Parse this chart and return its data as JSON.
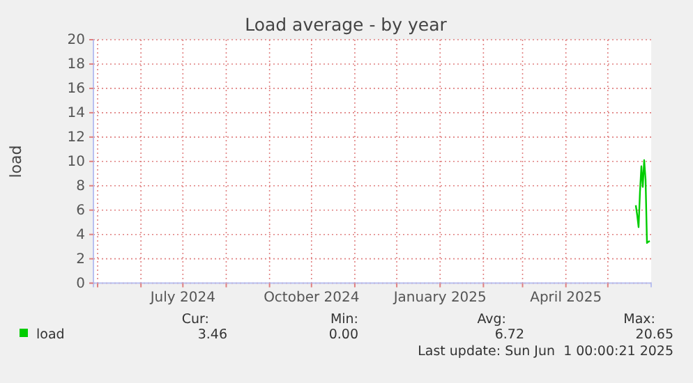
{
  "chart_data": {
    "type": "line",
    "title": "Load average - by year",
    "ylabel": "load",
    "x": [
      "2025-05-21",
      "2025-05-22",
      "2025-05-23",
      "2025-05-24",
      "2025-05-25",
      "2025-05-26",
      "2025-05-27",
      "2025-05-28",
      "2025-05-29",
      "2025-05-30",
      "2025-05-31"
    ],
    "series": [
      {
        "name": "load",
        "color": "#00cc00",
        "values": [
          6.4,
          5.6,
          4.6,
          7.5,
          9.6,
          7.9,
          10.1,
          8.5,
          3.3,
          3.4,
          3.46
        ]
      }
    ],
    "xlim": [
      "2024-04-28",
      "2025-06-01"
    ],
    "xticks": [
      {
        "value": "2024-05-01",
        "label": null
      },
      {
        "value": "2024-06-01",
        "label": null
      },
      {
        "value": "2024-07-01",
        "label": "July 2024"
      },
      {
        "value": "2024-08-01",
        "label": null
      },
      {
        "value": "2024-09-01",
        "label": null
      },
      {
        "value": "2024-10-01",
        "label": "October 2024"
      },
      {
        "value": "2024-11-01",
        "label": null
      },
      {
        "value": "2024-12-01",
        "label": null
      },
      {
        "value": "2025-01-01",
        "label": "January 2025"
      },
      {
        "value": "2025-02-01",
        "label": null
      },
      {
        "value": "2025-03-01",
        "label": null
      },
      {
        "value": "2025-04-01",
        "label": "April 2025"
      },
      {
        "value": "2025-05-01",
        "label": null
      }
    ],
    "ylim": [
      0,
      20
    ],
    "yticks": [
      0,
      2,
      4,
      6,
      8,
      10,
      12,
      14,
      16,
      18,
      20
    ],
    "grid": true,
    "legend": "bottom",
    "annotations": [
      "Cur:",
      "Min:",
      "Avg:",
      "Max:",
      "3.46",
      "0.00",
      "6.72",
      "20.65",
      "Last update: Sun Jun  1 00:00:21 2025"
    ]
  }
}
